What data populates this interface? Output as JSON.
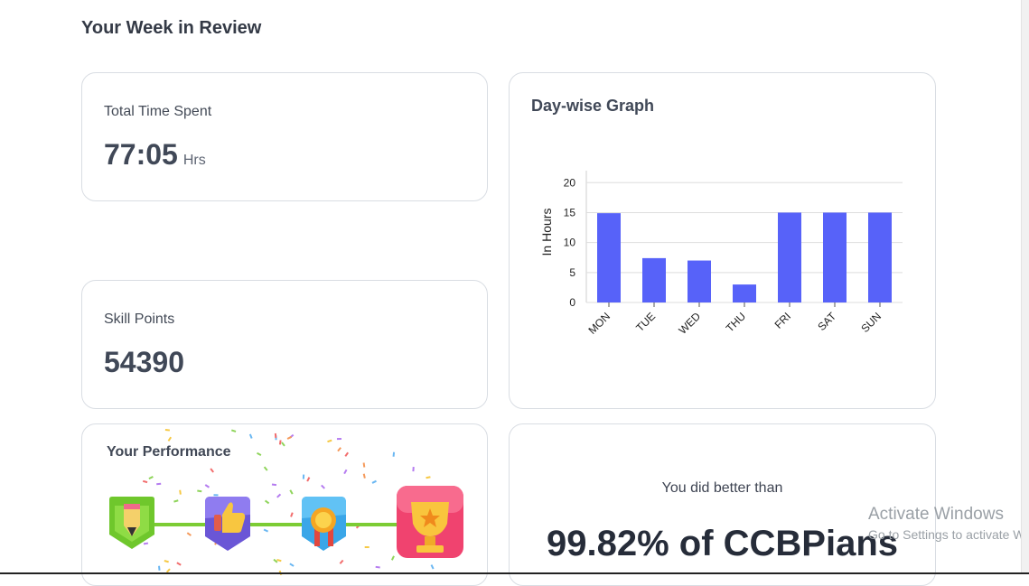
{
  "page": {
    "title": "Your Week in Review"
  },
  "total_time": {
    "label": "Total Time Spent",
    "value": "77:05",
    "unit": "Hrs"
  },
  "skill_points": {
    "label": "Skill Points",
    "value": "54390"
  },
  "graph": {
    "title": "Day-wise Graph"
  },
  "chart_data": {
    "type": "bar",
    "title": "",
    "xlabel": "",
    "ylabel": "In Hours",
    "categories": [
      "MON",
      "TUE",
      "WED",
      "THU",
      "FRI",
      "SAT",
      "SUN"
    ],
    "values": [
      14.9,
      7.4,
      7.0,
      3.0,
      15.0,
      15.0,
      15.0
    ],
    "ylim": [
      0,
      22
    ],
    "yticks": [
      0,
      5,
      10,
      15,
      20
    ],
    "grid": true,
    "bar_color": "#5762f9"
  },
  "performance": {
    "title": "Your Performance",
    "badges": [
      "pencil-badge-icon",
      "thumbs-up-badge-icon",
      "medal-badge-icon",
      "trophy-badge-icon"
    ],
    "line_color": "#7ccc34"
  },
  "comparison": {
    "label": "You did better than",
    "value": "99.82% of CCBPians"
  },
  "watermark": {
    "title": "Activate Windows",
    "subtitle": "Go to Settings to activate Windows."
  }
}
